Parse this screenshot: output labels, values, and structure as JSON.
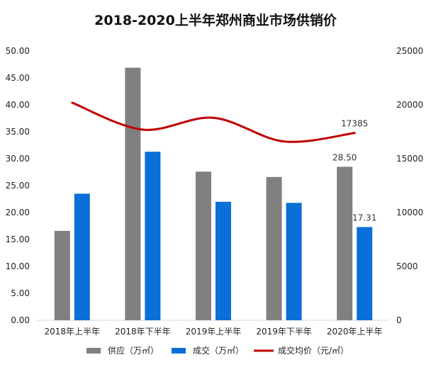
{
  "chart_data": {
    "type": "bar",
    "title": "2018-2020上半年郑州商业市场供销价",
    "categories": [
      "2018年上半年",
      "2018年下半年",
      "2019年上半年",
      "2019年下半年",
      "2020年上半年"
    ],
    "series": [
      {
        "name": "供应（万㎡）",
        "type": "bar",
        "axis": "left",
        "color": "#808080",
        "values": [
          16.6,
          46.9,
          27.6,
          26.6,
          28.5
        ]
      },
      {
        "name": "成交（万㎡）",
        "type": "bar",
        "axis": "left",
        "color": "#0A6FD6",
        "values": [
          23.5,
          31.3,
          22.0,
          21.8,
          17.31
        ]
      },
      {
        "name": "成交均价（元/㎡）",
        "type": "line",
        "axis": "right",
        "color": "#C00000",
        "values": [
          20200,
          17700,
          18800,
          16600,
          17385
        ]
      }
    ],
    "y_left": {
      "min": 0,
      "max": 50,
      "step": 5,
      "ticks": [
        "0.00",
        "5.00",
        "10.00",
        "15.00",
        "20.00",
        "25.00",
        "30.00",
        "35.00",
        "40.00",
        "45.00",
        "50.00"
      ]
    },
    "y_right": {
      "min": 0,
      "max": 25000,
      "step": 5000,
      "ticks": [
        "0",
        "5000",
        "10000",
        "15000",
        "20000",
        "25000"
      ]
    },
    "data_labels": [
      {
        "series": 0,
        "index": 4,
        "text": "28.50"
      },
      {
        "series": 1,
        "index": 4,
        "text": "17.31"
      },
      {
        "series": 2,
        "index": 4,
        "text": "17385"
      }
    ],
    "grid": false,
    "legend_position": "bottom"
  }
}
